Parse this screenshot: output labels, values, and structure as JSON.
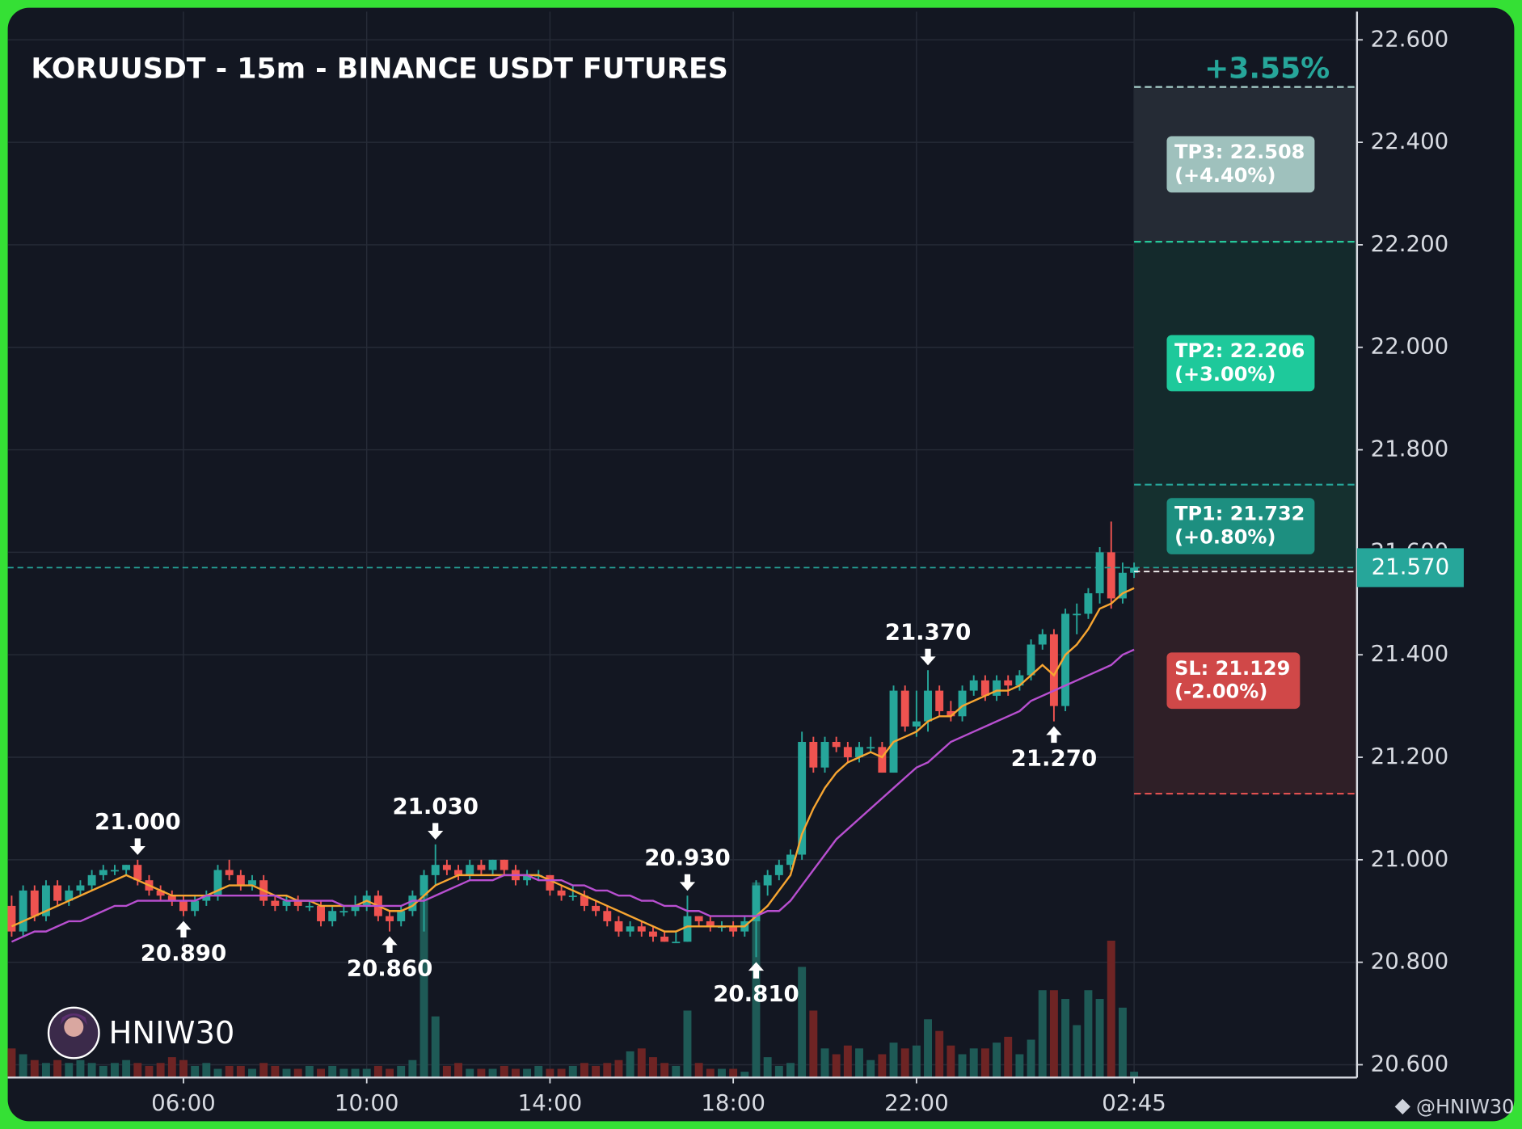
{
  "chart_data": {
    "type": "candlestick",
    "title": "KORUUSDT - 15m - BINANCE USDT FUTURES",
    "change_label": "+3.55%",
    "watermark": "HNIW30",
    "footer": "@HNIW30",
    "up_color": "#26a69a",
    "down_color": "#ef5350",
    "volume_colors": [
      "#1e5a56",
      "#6e2424"
    ],
    "xlim": [
      -0.34,
      117.46
    ],
    "xticks": [
      {
        "value": 15,
        "label": "06:00"
      },
      {
        "value": 31,
        "label": "10:00"
      },
      {
        "value": 47,
        "label": "14:00"
      },
      {
        "value": 63,
        "label": "18:00"
      },
      {
        "value": 79,
        "label": "22:00"
      },
      {
        "value": 98,
        "label": "02:45"
      }
    ],
    "ylim": [
      20.575,
      22.655
    ],
    "yticks": [
      {
        "value": 20.6,
        "label": "20.600"
      },
      {
        "value": 20.8,
        "label": "20.800"
      },
      {
        "value": 21.0,
        "label": "21.000"
      },
      {
        "value": 21.2,
        "label": "21.200"
      },
      {
        "value": 21.4,
        "label": "21.400"
      },
      {
        "value": 21.6,
        "label": "21.600"
      },
      {
        "value": 21.8,
        "label": "21.800"
      },
      {
        "value": 22.0,
        "label": "22.000"
      },
      {
        "value": 22.2,
        "label": "22.200"
      },
      {
        "value": 22.4,
        "label": "22.400"
      },
      {
        "value": 22.6,
        "label": "22.600"
      }
    ],
    "grid": true,
    "volume_lim": [
      0,
      366
    ],
    "candles": [
      [
        20.91,
        20.93,
        20.85,
        20.86
      ],
      [
        20.86,
        20.95,
        20.85,
        20.94
      ],
      [
        20.94,
        20.95,
        20.88,
        20.89
      ],
      [
        20.89,
        20.96,
        20.88,
        20.95
      ],
      [
        20.95,
        20.96,
        20.91,
        20.92
      ],
      [
        20.92,
        20.95,
        20.91,
        20.94
      ],
      [
        20.94,
        20.96,
        20.93,
        20.95
      ],
      [
        20.95,
        20.98,
        20.94,
        20.97
      ],
      [
        20.97,
        20.99,
        20.96,
        20.98
      ],
      [
        20.98,
        20.99,
        20.97,
        20.98
      ],
      [
        20.98,
        20.99,
        20.97,
        20.99
      ],
      [
        20.99,
        21.0,
        20.95,
        20.96
      ],
      [
        20.96,
        20.97,
        20.93,
        20.94
      ],
      [
        20.94,
        20.95,
        20.92,
        20.93
      ],
      [
        20.93,
        20.94,
        20.91,
        20.92
      ],
      [
        20.92,
        20.93,
        20.89,
        20.9
      ],
      [
        20.9,
        20.93,
        20.89,
        20.92
      ],
      [
        20.92,
        20.94,
        20.91,
        20.93
      ],
      [
        20.93,
        20.99,
        20.92,
        20.98
      ],
      [
        20.98,
        21.0,
        20.96,
        20.97
      ],
      [
        20.97,
        20.98,
        20.94,
        20.95
      ],
      [
        20.95,
        20.97,
        20.94,
        20.96
      ],
      [
        20.96,
        20.97,
        20.91,
        20.92
      ],
      [
        20.92,
        20.93,
        20.9,
        20.91
      ],
      [
        20.91,
        20.93,
        20.9,
        20.92
      ],
      [
        20.92,
        20.93,
        20.9,
        20.91
      ],
      [
        20.91,
        20.92,
        20.9,
        20.91
      ],
      [
        20.91,
        20.92,
        20.87,
        20.88
      ],
      [
        20.88,
        20.91,
        20.87,
        20.9
      ],
      [
        20.9,
        20.91,
        20.89,
        20.9
      ],
      [
        20.9,
        20.93,
        20.89,
        20.91
      ],
      [
        20.91,
        20.94,
        20.9,
        20.93
      ],
      [
        20.93,
        20.94,
        20.88,
        20.89
      ],
      [
        20.89,
        20.9,
        20.86,
        20.88
      ],
      [
        20.88,
        20.91,
        20.87,
        20.9
      ],
      [
        20.9,
        20.94,
        20.89,
        20.93
      ],
      [
        20.93,
        20.98,
        20.86,
        20.97
      ],
      [
        20.97,
        21.03,
        20.95,
        20.99
      ],
      [
        20.99,
        21.0,
        20.97,
        20.98
      ],
      [
        20.98,
        20.99,
        20.96,
        20.97
      ],
      [
        20.97,
        21.0,
        20.96,
        20.99
      ],
      [
        20.99,
        21.0,
        20.97,
        20.98
      ],
      [
        20.98,
        21.0,
        20.97,
        21.0
      ],
      [
        21.0,
        21.0,
        20.97,
        20.98
      ],
      [
        20.98,
        20.99,
        20.95,
        20.96
      ],
      [
        20.96,
        20.98,
        20.95,
        20.97
      ],
      [
        20.97,
        20.98,
        20.96,
        20.97
      ],
      [
        20.97,
        20.97,
        20.93,
        20.94
      ],
      [
        20.94,
        20.95,
        20.92,
        20.93
      ],
      [
        20.93,
        20.95,
        20.92,
        20.93
      ],
      [
        20.93,
        20.94,
        20.9,
        20.91
      ],
      [
        20.91,
        20.92,
        20.89,
        20.9
      ],
      [
        20.9,
        20.91,
        20.87,
        20.88
      ],
      [
        20.88,
        20.89,
        20.85,
        20.86
      ],
      [
        20.86,
        20.88,
        20.85,
        20.87
      ],
      [
        20.87,
        20.88,
        20.85,
        20.86
      ],
      [
        20.86,
        20.87,
        20.84,
        20.85
      ],
      [
        20.85,
        20.86,
        20.84,
        20.84
      ],
      [
        20.84,
        20.86,
        20.84,
        20.84
      ],
      [
        20.84,
        20.93,
        20.84,
        20.89
      ],
      [
        20.89,
        20.89,
        20.87,
        20.88
      ],
      [
        20.88,
        20.89,
        20.86,
        20.87
      ],
      [
        20.87,
        20.88,
        20.86,
        20.87
      ],
      [
        20.87,
        20.88,
        20.85,
        20.86
      ],
      [
        20.86,
        20.89,
        20.85,
        20.88
      ],
      [
        20.88,
        20.96,
        20.81,
        20.95
      ],
      [
        20.95,
        20.98,
        20.93,
        20.97
      ],
      [
        20.97,
        21.0,
        20.96,
        20.99
      ],
      [
        20.99,
        21.02,
        20.98,
        21.01
      ],
      [
        21.01,
        21.25,
        21.0,
        21.23
      ],
      [
        21.23,
        21.24,
        21.17,
        21.18
      ],
      [
        21.18,
        21.24,
        21.17,
        21.23
      ],
      [
        21.23,
        21.24,
        21.21,
        21.22
      ],
      [
        21.22,
        21.23,
        21.19,
        21.2
      ],
      [
        21.2,
        21.23,
        21.19,
        21.22
      ],
      [
        21.22,
        21.24,
        21.21,
        21.22
      ],
      [
        21.22,
        21.23,
        21.17,
        21.17
      ],
      [
        21.17,
        21.34,
        21.17,
        21.33
      ],
      [
        21.33,
        21.34,
        21.25,
        21.26
      ],
      [
        21.26,
        21.33,
        21.24,
        21.27
      ],
      [
        21.27,
        21.37,
        21.25,
        21.33
      ],
      [
        21.33,
        21.34,
        21.28,
        21.29
      ],
      [
        21.29,
        21.31,
        21.27,
        21.28
      ],
      [
        21.28,
        21.34,
        21.27,
        21.33
      ],
      [
        21.33,
        21.36,
        21.32,
        21.35
      ],
      [
        21.35,
        21.36,
        21.31,
        21.32
      ],
      [
        21.32,
        21.36,
        21.31,
        21.35
      ],
      [
        21.35,
        21.36,
        21.32,
        21.34
      ],
      [
        21.34,
        21.37,
        21.33,
        21.36
      ],
      [
        21.36,
        21.43,
        21.35,
        21.42
      ],
      [
        21.42,
        21.45,
        21.41,
        21.44
      ],
      [
        21.44,
        21.45,
        21.27,
        21.3
      ],
      [
        21.3,
        21.49,
        21.29,
        21.48
      ],
      [
        21.48,
        21.5,
        21.44,
        21.48
      ],
      [
        21.48,
        21.53,
        21.47,
        21.52
      ],
      [
        21.52,
        21.61,
        21.5,
        21.6
      ],
      [
        21.6,
        21.66,
        21.49,
        21.51
      ],
      [
        21.51,
        21.58,
        21.5,
        21.56
      ],
      [
        21.56,
        21.58,
        21.55,
        21.57
      ]
    ],
    "volumes": [
      10,
      8,
      6,
      5,
      6,
      5,
      6,
      5,
      4,
      5,
      6,
      5,
      4,
      5,
      7,
      6,
      4,
      5,
      3,
      4,
      4,
      3,
      5,
      4,
      3,
      3,
      4,
      3,
      4,
      3,
      3,
      3,
      4,
      3,
      4,
      6,
      67,
      21,
      4,
      5,
      3,
      3,
      3,
      4,
      3,
      3,
      4,
      3,
      3,
      4,
      5,
      4,
      5,
      6,
      9,
      10,
      7,
      5,
      4,
      23,
      5,
      3,
      3,
      3,
      2,
      67,
      7,
      4,
      5,
      38,
      23,
      10,
      8,
      11,
      10,
      6,
      8,
      12,
      10,
      11,
      20,
      16,
      11,
      8,
      10,
      10,
      12,
      14,
      8,
      13,
      30,
      30,
      27,
      18,
      30,
      27,
      47,
      24,
      2
    ],
    "lines": [
      {
        "color": "#f7a531",
        "values": [
          20.87,
          20.88,
          20.89,
          20.9,
          20.91,
          20.92,
          20.93,
          20.94,
          20.95,
          20.96,
          20.97,
          20.96,
          20.95,
          20.94,
          20.93,
          20.93,
          20.93,
          20.93,
          20.94,
          20.95,
          20.95,
          20.95,
          20.94,
          20.93,
          20.93,
          20.92,
          20.92,
          20.91,
          20.91,
          20.91,
          20.91,
          20.92,
          20.91,
          20.9,
          20.9,
          20.91,
          20.93,
          20.95,
          20.96,
          20.97,
          20.97,
          20.97,
          20.97,
          20.97,
          20.97,
          20.97,
          20.97,
          20.96,
          20.95,
          20.94,
          20.93,
          20.92,
          20.91,
          20.9,
          20.89,
          20.88,
          20.87,
          20.86,
          20.86,
          20.87,
          20.87,
          20.87,
          20.87,
          20.87,
          20.87,
          20.89,
          20.91,
          20.94,
          20.97,
          21.05,
          21.1,
          21.14,
          21.17,
          21.19,
          21.2,
          21.21,
          21.2,
          21.23,
          21.24,
          21.25,
          21.27,
          21.28,
          21.28,
          21.3,
          21.31,
          21.32,
          21.33,
          21.33,
          21.34,
          21.36,
          21.38,
          21.36,
          21.4,
          21.42,
          21.45,
          21.49,
          21.5,
          21.52,
          21.53
        ]
      },
      {
        "color": "#b84fd0",
        "values": [
          20.84,
          20.85,
          20.86,
          20.86,
          20.87,
          20.88,
          20.88,
          20.89,
          20.9,
          20.91,
          20.91,
          20.92,
          20.92,
          20.92,
          20.92,
          20.92,
          20.92,
          20.93,
          20.93,
          20.93,
          20.93,
          20.93,
          20.93,
          20.93,
          20.92,
          20.92,
          20.92,
          20.92,
          20.92,
          20.91,
          20.91,
          20.91,
          20.91,
          20.91,
          20.91,
          20.92,
          20.92,
          20.93,
          20.94,
          20.95,
          20.96,
          20.96,
          20.96,
          20.97,
          20.97,
          20.97,
          20.96,
          20.96,
          20.96,
          20.95,
          20.95,
          20.94,
          20.94,
          20.93,
          20.93,
          20.92,
          20.92,
          20.91,
          20.91,
          20.9,
          20.9,
          20.89,
          20.89,
          20.89,
          20.89,
          20.89,
          20.9,
          20.9,
          20.92,
          20.95,
          20.98,
          21.01,
          21.04,
          21.06,
          21.08,
          21.1,
          21.12,
          21.14,
          21.16,
          21.18,
          21.19,
          21.21,
          21.23,
          21.24,
          21.25,
          21.26,
          21.27,
          21.28,
          21.29,
          21.31,
          21.32,
          21.33,
          21.34,
          21.35,
          21.36,
          21.37,
          21.38,
          21.4,
          21.41
        ]
      }
    ],
    "annotations": [
      {
        "x": 11,
        "value": 21.0,
        "label": "21.000",
        "direction": "high"
      },
      {
        "x": 15,
        "value": 20.89,
        "label": "20.890",
        "direction": "low"
      },
      {
        "x": 33,
        "value": 20.86,
        "label": "20.860",
        "direction": "low"
      },
      {
        "x": 37,
        "value": 21.03,
        "label": "21.030",
        "direction": "high"
      },
      {
        "x": 59,
        "value": 20.93,
        "label": "20.930",
        "direction": "high"
      },
      {
        "x": 65,
        "value": 20.81,
        "label": "20.810",
        "direction": "low"
      },
      {
        "x": 80,
        "value": 21.37,
        "label": "21.370",
        "direction": "high"
      },
      {
        "x": 91,
        "value": 21.27,
        "label": "21.270",
        "direction": "low"
      }
    ],
    "current_price": {
      "value": 21.57,
      "label": "21.570",
      "color": "#26a69a"
    },
    "levels": [
      {
        "value": 22.508,
        "label": "TP3: 22.508",
        "pct": 4.4,
        "pct_label": "(+4.40%)",
        "color": "#a8d0cc",
        "box_color": "#9fc1bd",
        "zone_color": "#252b35"
      },
      {
        "value": 22.206,
        "label": "TP2: 22.206",
        "pct": 3.0,
        "pct_label": "(+3.00%)",
        "color": "#26c99a",
        "box_color": "#1ec99b",
        "zone_color": "#142a2c"
      },
      {
        "value": 21.732,
        "label": "TP1: 21.732",
        "pct": 0.8,
        "pct_label": "(+0.80%)",
        "color": "#26a69a",
        "box_color": "#1d8f80",
        "zone_color": "#15302f"
      },
      {
        "value": 21.129,
        "label": "SL: 21.129",
        "pct": -2.0,
        "pct_label": "(-2.00%)",
        "color": "#e05050",
        "box_color": "#d04848",
        "zone_color": "#2f1f27"
      }
    ]
  }
}
